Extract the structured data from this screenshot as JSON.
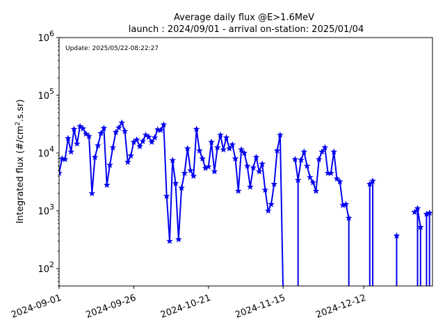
{
  "chart_data": {
    "type": "line",
    "title": "Average daily flux @E>1.6MeV",
    "subtitle": "launch : 2024/09/01 - arrival on-station: 2025/01/04",
    "annotation": "Update: 2025/05/22-08:22:27",
    "ylabel_main": "Integrated flux (#/cm",
    "ylabel_sup": "2",
    "ylabel_end": ".s.sr)",
    "xlabel": "",
    "yscale": "log",
    "ylim": [
      50,
      1000000
    ],
    "xlim": [
      "2024-09-01",
      "2025-01-04"
    ],
    "x_ticks": [
      "2024-09-01",
      "2024-09-26",
      "2024-10-21",
      "2024-11-15",
      "2024-12-12"
    ],
    "y_ticks": [
      {
        "value": 100,
        "base": "10",
        "exp": "2"
      },
      {
        "value": 1000,
        "base": "10",
        "exp": "3"
      },
      {
        "value": 10000,
        "base": "10",
        "exp": "4"
      },
      {
        "value": 100000,
        "base": "10",
        "exp": "5"
      },
      {
        "value": 1000000,
        "base": "10",
        "exp": "6"
      }
    ],
    "grid": false,
    "line_color": "#0000ee",
    "series": [
      {
        "x": [
          "2024-09-01",
          "2024-09-02",
          "2024-09-03",
          "2024-09-04",
          "2024-09-05",
          "2024-09-06",
          "2024-09-07",
          "2024-09-08",
          "2024-09-09",
          "2024-09-10",
          "2024-09-11",
          "2024-09-12",
          "2024-09-13",
          "2024-09-14",
          "2024-09-15",
          "2024-09-16",
          "2024-09-17",
          "2024-09-18",
          "2024-09-19",
          "2024-09-20",
          "2024-09-21",
          "2024-09-22",
          "2024-09-23",
          "2024-09-24",
          "2024-09-25",
          "2024-09-26",
          "2024-09-27",
          "2024-09-28",
          "2024-09-29",
          "2024-09-30",
          "2024-10-01",
          "2024-10-02",
          "2024-10-03",
          "2024-10-04",
          "2024-10-05",
          "2024-10-06",
          "2024-10-07",
          "2024-10-08",
          "2024-10-09",
          "2024-10-10",
          "2024-10-11",
          "2024-10-12",
          "2024-10-13",
          "2024-10-14",
          "2024-10-15",
          "2024-10-16",
          "2024-10-17",
          "2024-10-18",
          "2024-10-19",
          "2024-10-20",
          "2024-10-21",
          "2024-10-22",
          "2024-10-23",
          "2024-10-24",
          "2024-10-25",
          "2024-10-26",
          "2024-10-27",
          "2024-10-28",
          "2024-10-29",
          "2024-10-30",
          "2024-10-31",
          "2024-11-01",
          "2024-11-02",
          "2024-11-03",
          "2024-11-04",
          "2024-11-05",
          "2024-11-06",
          "2024-11-07",
          "2024-11-08",
          "2024-11-09",
          "2024-11-10",
          "2024-11-11",
          "2024-11-12",
          "2024-11-13",
          "2024-11-14",
          "2024-11-15",
          "2024-11-16",
          "2024-11-17",
          "2024-11-18",
          "2024-11-19",
          "2024-11-20",
          "2024-11-21",
          "2024-11-22",
          "2024-11-23",
          "2024-11-24",
          "2024-11-25",
          "2024-11-26",
          "2024-11-27",
          "2024-11-28",
          "2024-11-29",
          "2024-11-30",
          "2024-12-01",
          "2024-12-02",
          "2024-12-03",
          "2024-12-04",
          "2024-12-05",
          "2024-12-06",
          "2024-12-07",
          "2024-12-08",
          "2024-12-09",
          "2024-12-10",
          "2024-12-11",
          "2024-12-12",
          "2024-12-13",
          "2024-12-14",
          "2024-12-15",
          "2024-12-16",
          "2024-12-17",
          "2024-12-18",
          "2024-12-19",
          "2024-12-20",
          "2024-12-21",
          "2024-12-22",
          "2024-12-23",
          "2024-12-24",
          "2024-12-25",
          "2024-12-26",
          "2024-12-27",
          "2024-12-28",
          "2024-12-29",
          "2024-12-30",
          "2024-12-31",
          "2025-01-01",
          "2025-01-02",
          "2025-01-03"
        ],
        "y": [
          4500,
          8000,
          7800,
          18000,
          10500,
          26000,
          14500,
          29000,
          26500,
          21500,
          19500,
          2000,
          8500,
          13500,
          22000,
          27000,
          2800,
          6200,
          12500,
          23000,
          27500,
          33500,
          24000,
          7000,
          9000,
          15500,
          17000,
          13000,
          16000,
          20500,
          19000,
          15500,
          18500,
          25500,
          25000,
          31000,
          1800,
          300,
          7500,
          3000,
          320,
          2500,
          4500,
          12000,
          5000,
          4000,
          26000,
          11000,
          8000,
          5500,
          5800,
          15500,
          4800,
          12500,
          20500,
          11500,
          18500,
          12000,
          14000,
          8000,
          2200,
          11500,
          10000,
          6000,
          2600,
          5600,
          8500,
          4800,
          6500,
          2300,
          1000,
          1300,
          2900,
          11000,
          20500,
          null,
          null,
          null,
          null,
          7800,
          3400,
          7600,
          10500,
          6000,
          3800,
          3100,
          2200,
          7800,
          10500,
          12500,
          4500,
          4500,
          10500,
          3600,
          3200,
          1250,
          1300,
          750,
          null,
          null,
          null,
          null,
          null,
          null,
          2900,
          3300,
          null,
          null,
          null,
          null,
          null,
          null,
          null,
          370,
          null,
          null,
          null,
          null,
          null,
          950,
          1100,
          520,
          null,
          880,
          920
        ]
      }
    ],
    "drop_segments": [
      {
        "from": "2024-11-14",
        "to": "2024-11-15"
      },
      {
        "from": "2024-11-20",
        "to": "2024-11-20"
      },
      {
        "from": "2024-12-07",
        "to": "2024-12-07"
      },
      {
        "from": "2024-12-14",
        "to": "2024-12-14"
      },
      {
        "from": "2024-12-15",
        "to": "2024-12-15"
      },
      {
        "from": "2024-12-23",
        "to": "2024-12-23"
      },
      {
        "from": "2024-12-28",
        "to": "2024-12-28"
      },
      {
        "from": "2024-12-30",
        "to": "2024-12-30"
      },
      {
        "from": "2024-12-31",
        "to": "2024-12-31"
      },
      {
        "from": "2025-01-02",
        "to": "2025-01-02"
      },
      {
        "from": "2025-01-03",
        "to": "2025-01-03"
      }
    ]
  }
}
